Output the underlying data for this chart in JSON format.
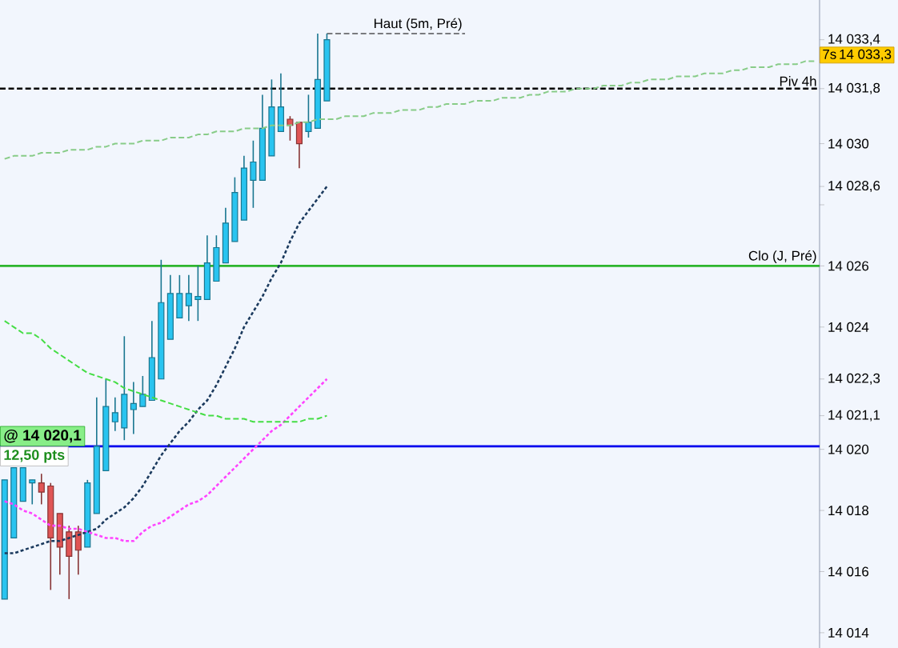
{
  "chart_data": {
    "type": "candlestick",
    "categories": [
      null,
      null,
      null,
      null,
      null,
      null,
      null,
      null,
      null,
      null,
      null,
      null,
      null,
      null,
      null,
      null,
      null,
      null,
      null,
      null,
      null,
      null,
      null,
      null,
      null,
      null,
      null,
      null,
      null,
      null,
      null,
      null,
      null,
      null,
      null,
      null,
      null,
      null,
      null,
      null,
      null,
      null,
      null,
      null,
      null,
      null,
      null,
      null,
      null,
      null,
      null,
      null,
      null,
      null,
      null,
      null,
      null,
      null,
      null,
      null,
      null,
      null,
      null,
      null,
      null,
      null,
      null,
      null,
      null,
      null,
      null,
      null,
      null,
      null,
      null,
      null,
      null,
      null,
      null,
      null,
      null,
      null,
      null,
      null,
      null,
      null,
      null,
      null,
      null
    ],
    "ohlc": [
      [
        14015.1,
        14019.0,
        14015.1,
        14019.0
      ],
      [
        14017.1,
        14019.4,
        14017.1,
        14019.4
      ],
      [
        14018.3,
        14019.4,
        14018.3,
        14019.4
      ],
      [
        14018.9,
        14019.0,
        14018.2,
        14019.0
      ],
      [
        14018.9,
        14019.2,
        14018.2,
        14018.6
      ],
      [
        14018.8,
        14018.9,
        14015.4,
        14017.1
      ],
      [
        14017.9,
        14017.9,
        14015.9,
        14016.8
      ],
      [
        14017.3,
        14017.5,
        14015.1,
        14016.5
      ],
      [
        14017.3,
        14017.5,
        14015.9,
        14016.7
      ],
      [
        14016.8,
        14019.0,
        14016.8,
        14018.9
      ],
      [
        14017.9,
        14021.7,
        14017.9,
        14020.1
      ],
      [
        14019.3,
        14022.3,
        14019.3,
        14021.4
      ],
      [
        14020.9,
        14021.7,
        14020.6,
        14021.2
      ],
      [
        14020.7,
        14023.7,
        14020.3,
        14021.8
      ],
      [
        14021.3,
        14022.2,
        14020.5,
        14021.5
      ],
      [
        14021.4,
        14022.4,
        14021.4,
        14021.8
      ],
      [
        14021.6,
        14024.2,
        14021.6,
        14023.0
      ],
      [
        14022.3,
        14026.2,
        14022.3,
        14024.8
      ],
      [
        14023.6,
        14025.7,
        14023.6,
        14025.1
      ],
      [
        14024.3,
        14025.7,
        14024.3,
        14025.1
      ],
      [
        14024.7,
        14025.7,
        14024.2,
        14025.1
      ],
      [
        14024.9,
        14026.0,
        14024.2,
        14025.0
      ],
      [
        14024.9,
        14027.0,
        14024.9,
        14026.1
      ],
      [
        14025.5,
        14027.0,
        14025.5,
        14026.6
      ],
      [
        14026.1,
        14027.9,
        14026.1,
        14027.4
      ],
      [
        14026.8,
        14028.9,
        14026.8,
        14028.4
      ],
      [
        14027.5,
        14029.6,
        14027.5,
        14029.2
      ],
      [
        14028.8,
        14030.1,
        14027.9,
        14029.4
      ],
      [
        14028.8,
        14031.6,
        14028.8,
        14030.5
      ],
      [
        14029.6,
        14032.1,
        14029.6,
        14031.2
      ],
      [
        14030.4,
        14032.3,
        14030.4,
        14031.2
      ],
      [
        14030.8,
        14030.9,
        14030.1,
        14030.6
      ],
      [
        14030.7,
        14030.7,
        14029.2,
        14030.0
      ],
      [
        14030.4,
        14031.6,
        14030.2,
        14030.7
      ],
      [
        14030.5,
        14033.6,
        14030.5,
        14032.1
      ],
      [
        14031.4,
        14033.6,
        14031.4,
        14033.4
      ],
      null,
      null,
      null,
      null,
      null,
      null,
      null,
      null,
      null,
      null,
      null,
      null,
      null,
      null,
      null,
      null,
      null,
      null,
      null,
      null,
      null,
      null,
      null,
      null,
      null,
      null,
      null,
      null,
      null,
      null,
      null,
      null,
      null,
      null,
      null,
      null,
      null,
      null,
      null,
      null,
      null,
      null,
      null,
      null,
      null,
      null,
      null,
      null,
      null,
      null,
      null,
      null,
      null
    ],
    "colors": [
      "#29c4f0",
      "#29c4f0",
      "#29c4f0",
      "#29c4f0",
      "#e05555",
      "#e05555",
      "#e05555",
      "#e05555",
      "#e05555",
      "#29c4f0",
      "#29c4f0",
      "#29c4f0",
      "#29c4f0",
      "#29c4f0",
      "#29c4f0",
      "#29c4f0",
      "#29c4f0",
      "#29c4f0",
      "#29c4f0",
      "#29c4f0",
      "#29c4f0",
      "#29c4f0",
      "#29c4f0",
      "#29c4f0",
      "#29c4f0",
      "#29c4f0",
      "#29c4f0",
      "#29c4f0",
      "#29c4f0",
      "#29c4f0",
      "#29c4f0",
      "#e05555",
      "#e05555",
      "#29c4f0",
      "#29c4f0",
      "#29c4f0",
      null,
      null,
      null,
      null,
      null,
      null,
      null,
      null,
      null,
      null,
      null,
      null,
      null,
      null,
      null,
      null,
      null,
      null,
      null,
      null,
      null,
      null,
      null,
      null,
      null,
      null,
      null,
      null,
      null,
      null,
      null,
      null,
      null,
      null,
      null,
      null,
      null,
      null,
      null,
      null,
      null,
      null,
      null,
      null,
      null,
      null,
      null,
      null,
      null,
      null,
      null,
      null,
      null
    ],
    "series": [
      {
        "type": "line",
        "color": "#1b3a5e",
        "line_style": "dotted",
        "values": [
          14016.6,
          14016.6,
          14016.7,
          14016.8,
          14016.9,
          14017.0,
          14017.0,
          14017.1,
          14017.2,
          14017.3,
          14017.4,
          14017.7,
          14017.9,
          14018.1,
          14018.4,
          14018.8,
          14019.3,
          14019.8,
          14020.2,
          14020.6,
          14020.9,
          14021.3,
          14021.6,
          14022.1,
          14022.7,
          14023.3,
          14024.0,
          14024.5,
          14025.0,
          14025.6,
          14026.1,
          14026.8,
          14027.4,
          14027.8,
          14028.2,
          14028.6,
          null,
          null,
          null,
          null,
          null,
          null,
          null,
          null,
          null,
          null,
          null,
          null,
          null,
          null,
          null,
          null,
          null,
          null,
          null,
          null,
          null,
          null,
          null,
          null,
          null,
          null,
          null,
          null,
          null,
          null,
          null,
          null,
          null,
          null,
          null,
          null,
          null,
          null,
          null,
          null,
          null,
          null,
          null,
          null,
          null,
          null,
          null,
          null,
          null,
          null,
          null,
          null,
          null
        ]
      },
      {
        "type": "line",
        "color": "#ff44ff",
        "line_style": "dotted",
        "values": [
          14018.3,
          14018.2,
          14018.0,
          14017.9,
          14017.7,
          14017.5,
          14017.5,
          14017.4,
          14017.4,
          14017.3,
          14017.2,
          14017.1,
          14017.1,
          14017.0,
          14017.0,
          14017.3,
          14017.5,
          14017.6,
          14017.8,
          14018.0,
          14018.2,
          14018.3,
          14018.5,
          14018.8,
          14019.1,
          14019.4,
          14019.7,
          14020.0,
          14020.3,
          14020.6,
          14020.8,
          14021.1,
          14021.4,
          14021.7,
          14022.0,
          14022.3,
          null,
          null,
          null,
          null,
          null,
          null,
          null,
          null,
          null,
          null,
          null,
          null,
          null,
          null,
          null,
          null,
          null,
          null,
          null,
          null,
          null,
          null,
          null,
          null,
          null,
          null,
          null,
          null,
          null,
          null,
          null,
          null,
          null,
          null,
          null,
          null,
          null,
          null,
          null,
          null,
          null,
          null,
          null,
          null,
          null,
          null,
          null,
          null,
          null,
          null,
          null,
          null,
          null
        ]
      },
      {
        "type": "line",
        "color": "#44dd44",
        "line_style": "dashed",
        "values": [
          14024.2,
          14024.0,
          14023.8,
          14023.8,
          14023.6,
          14023.3,
          14023.1,
          14022.9,
          14022.7,
          14022.5,
          14022.4,
          14022.3,
          14022.2,
          14022.0,
          14021.9,
          14021.8,
          14021.7,
          14021.6,
          14021.5,
          14021.4,
          14021.3,
          14021.2,
          14021.1,
          14021.1,
          14021.0,
          14021.0,
          14021.0,
          14020.9,
          14020.9,
          14020.9,
          14020.9,
          14020.9,
          14020.9,
          14021.0,
          14021.0,
          14021.1,
          null,
          null,
          null,
          null,
          null,
          null,
          null,
          null,
          null,
          null,
          null,
          null,
          null,
          null,
          null,
          null,
          null,
          null,
          null,
          null,
          null,
          null,
          null,
          null,
          null,
          null,
          null,
          null,
          null,
          null,
          null,
          null,
          null,
          null,
          null,
          null,
          null,
          null,
          null,
          null,
          null,
          null,
          null,
          null,
          null,
          null,
          null,
          null,
          null,
          null,
          null,
          null,
          null
        ]
      },
      {
        "type": "line",
        "color": "#88cc88",
        "line_style": "dashed",
        "values": [
          14029.5,
          14029.6,
          14029.6,
          14029.6,
          14029.7,
          14029.7,
          14029.7,
          14029.8,
          14029.8,
          14029.8,
          14029.9,
          14029.9,
          14030.0,
          14030.0,
          14030.0,
          14030.1,
          14030.1,
          14030.1,
          14030.2,
          14030.2,
          14030.2,
          14030.3,
          14030.3,
          14030.4,
          14030.4,
          14030.4,
          14030.5,
          14030.5,
          14030.5,
          14030.6,
          14030.6,
          14030.6,
          14030.7,
          14030.7,
          14030.8,
          14030.8,
          14030.8,
          14030.9,
          14030.9,
          14030.9,
          14031.0,
          14031.0,
          14031.0,
          14031.1,
          14031.1,
          14031.1,
          14031.2,
          14031.2,
          14031.3,
          14031.3,
          14031.3,
          14031.4,
          14031.4,
          14031.4,
          14031.5,
          14031.5,
          14031.5,
          14031.6,
          14031.6,
          14031.7,
          14031.7,
          14031.7,
          14031.8,
          14031.8,
          14031.8,
          14031.9,
          14031.9,
          14031.9,
          14032.0,
          14032.0,
          14032.1,
          14032.1,
          14032.1,
          14032.2,
          14032.2,
          14032.2,
          14032.3,
          14032.3,
          14032.3,
          14032.4,
          14032.4,
          14032.5,
          14032.5,
          14032.5,
          14032.6,
          14032.6,
          14032.6,
          14032.7,
          14032.7
        ]
      }
    ],
    "ylim": [
      14013.5,
      14034.7
    ],
    "yticks": [
      {
        "value": 14014,
        "label": "14 014"
      },
      {
        "value": 14016,
        "label": "14 016"
      },
      {
        "value": 14018,
        "label": "14 018"
      },
      {
        "value": 14020,
        "label": "14 020"
      },
      {
        "value": 14021.1,
        "label": "14 021,1"
      },
      {
        "value": 14022.3,
        "label": "14 022,3"
      },
      {
        "value": 14024,
        "label": "14 024"
      },
      {
        "value": 14026,
        "label": "14 026"
      },
      {
        "value": 14028,
        "label": null
      },
      {
        "value": 14028.6,
        "label": "14 028,6"
      },
      {
        "value": 14030,
        "label": "14 030"
      },
      {
        "value": 14031.8,
        "label": "14 031,8"
      },
      {
        "value": 14033.4,
        "label": "14 033,4"
      }
    ],
    "tick_labels": "y",
    "ref_lines": [
      {
        "axis": "y",
        "value": 14031.8,
        "label": "Piv 4h",
        "color": "#000000",
        "line_style": "dashed"
      },
      {
        "axis": "y",
        "value": 14026,
        "label": "Clo (J, Pré)",
        "color": "#2db52d",
        "line_style": "solid"
      },
      {
        "axis": "y",
        "value": 14020.1,
        "label": "@ 14 020,1",
        "color": "#0000ee",
        "line_style": "solid"
      },
      {
        "axis": "y",
        "value": 14033.6,
        "label": "Haut (5m, Pré)",
        "color": "#000000",
        "line_style": "dashed"
      }
    ],
    "annotations": [
      "12,50 pts",
      "7s",
      "14 033,3"
    ]
  }
}
